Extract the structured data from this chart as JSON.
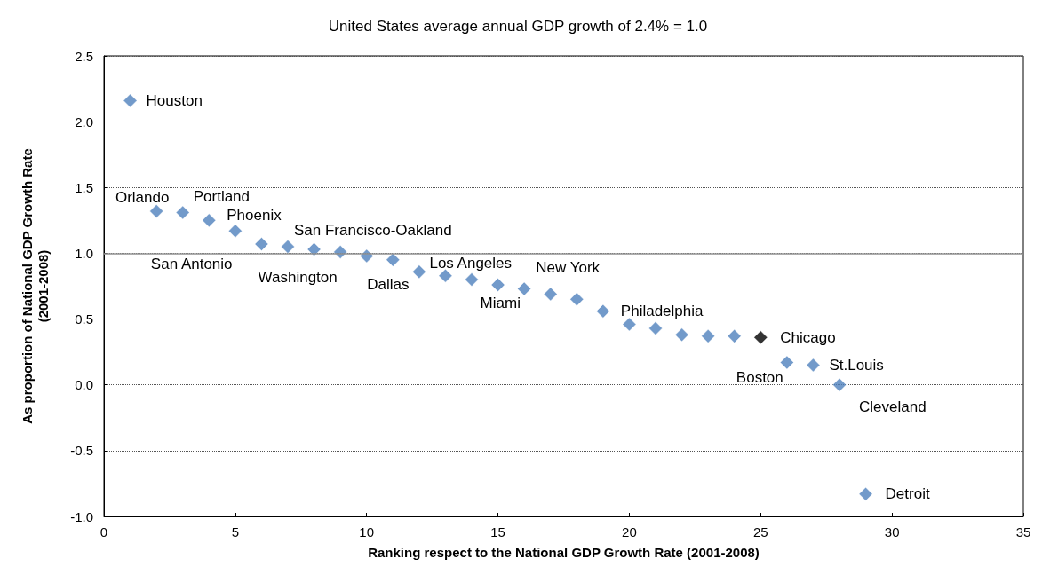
{
  "chart_data": {
    "type": "scatter",
    "title": "United States average annual GDP growth of 2.4% = 1.0",
    "xlabel": "Ranking respect to the National GDP Growth Rate (2001-2008)",
    "ylabel": "As proportion of National GDP Growth Rate\n(2001-2008)",
    "x": [
      1,
      2,
      3,
      4,
      5,
      6,
      7,
      8,
      9,
      10,
      11,
      12,
      13,
      14,
      15,
      16,
      17,
      18,
      19,
      20,
      21,
      22,
      23,
      24,
      25,
      26,
      27,
      28,
      29
    ],
    "values": [
      2.16,
      1.32,
      1.31,
      1.25,
      1.17,
      1.07,
      1.05,
      1.03,
      1.01,
      0.98,
      0.95,
      0.86,
      0.83,
      0.8,
      0.76,
      0.73,
      0.69,
      0.65,
      0.56,
      0.46,
      0.43,
      0.38,
      0.37,
      0.37,
      0.36,
      0.17,
      0.15,
      0.0,
      -0.83
    ],
    "colors": [
      "#4f81bd",
      "#4f81bd",
      "#4f81bd",
      "#4f81bd",
      "#4f81bd",
      "#4f81bd",
      "#4f81bd",
      "#4f81bd",
      "#4f81bd",
      "#4f81bd",
      "#4f81bd",
      "#4f81bd",
      "#4f81bd",
      "#4f81bd",
      "#4f81bd",
      "#4f81bd",
      "#4f81bd",
      "#4f81bd",
      "#4f81bd",
      "#4f81bd",
      "#4f81bd",
      "#4f81bd",
      "#4f81bd",
      "#4f81bd",
      "#000000",
      "#4f81bd",
      "#4f81bd",
      "#4f81bd",
      "#4f81bd"
    ],
    "marker": "diamond",
    "xlim": [
      0,
      35
    ],
    "xticks": [
      0,
      5,
      10,
      15,
      20,
      25,
      30,
      35
    ],
    "ylim": [
      -1,
      2.5
    ],
    "yticks": [
      {
        "value": -1,
        "label": "-1.0"
      },
      -0.5,
      {
        "value": 0,
        "label": "0.0"
      },
      0.5,
      {
        "value": 1,
        "label": "1.0"
      },
      1.5,
      {
        "value": 2,
        "label": "2.0"
      },
      2.5
    ],
    "grid": "y",
    "ref_lines": [
      {
        "axis": "y",
        "value": 1,
        "color": "#909090"
      }
    ],
    "annotations": [
      {
        "text": "Houston",
        "x": 1,
        "y": 2.16
      },
      {
        "text": "Orlando",
        "x": 2,
        "y": 1.32
      },
      {
        "text": "Portland",
        "x": 3,
        "y": 1.31
      },
      {
        "text": "Phoenix",
        "x": 4,
        "y": 1.25
      },
      {
        "text": "San Antonio",
        "x": 5,
        "y": 1.17
      },
      {
        "text": "San Francisco-Oakland",
        "x": 7,
        "y": 1.05
      },
      {
        "text": "Washington",
        "x": 8,
        "y": 1.03
      },
      {
        "text": "Dallas",
        "x": 11,
        "y": 0.95
      },
      {
        "text": "Los Angeles",
        "x": 13,
        "y": 0.83
      },
      {
        "text": "Miami",
        "x": 15,
        "y": 0.76
      },
      {
        "text": "New York",
        "x": 18,
        "y": 0.65
      },
      {
        "text": "Philadelphia",
        "x": 19,
        "y": 0.56
      },
      {
        "text": "Chicago",
        "x": 25,
        "y": 0.36
      },
      {
        "text": "Boston",
        "x": 26,
        "y": 0.17
      },
      {
        "text": "St.Louis",
        "x": 27,
        "y": 0.15
      },
      {
        "text": "Cleveland",
        "x": 28,
        "y": 0.0
      },
      {
        "text": "Detroit",
        "x": 29,
        "y": -0.83
      }
    ]
  }
}
